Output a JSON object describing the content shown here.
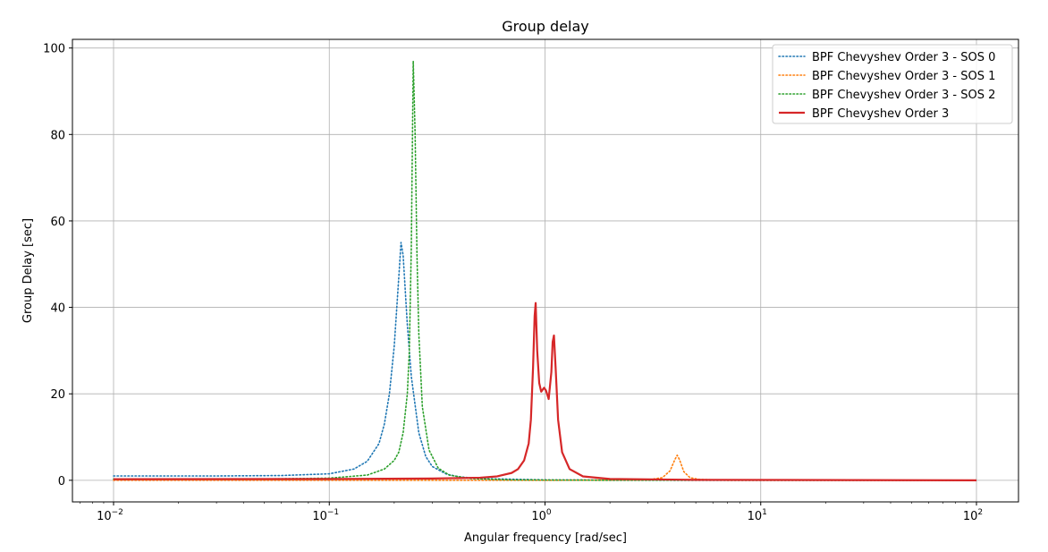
{
  "chart_data": {
    "type": "line",
    "title": "Group delay",
    "xlabel": "Angular frequency [rad/sec]",
    "ylabel": "Group Delay [sec]",
    "xscale": "log",
    "xlim": [
      0.01,
      100
    ],
    "ylim": [
      -5,
      102
    ],
    "xticks": [
      0.01,
      0.1,
      1,
      10,
      100
    ],
    "xtick_labels": [
      {
        "base": "10",
        "exp": "−2"
      },
      {
        "base": "10",
        "exp": "−1"
      },
      {
        "base": "10",
        "exp": "0"
      },
      {
        "base": "10",
        "exp": "1"
      },
      {
        "base": "10",
        "exp": "2"
      }
    ],
    "yticks": [
      0,
      20,
      40,
      60,
      80,
      100
    ],
    "ytick_labels": [
      "0",
      "20",
      "40",
      "60",
      "80",
      "100"
    ],
    "grid": true,
    "legend_position": "top-right",
    "series": [
      {
        "name": "BPF Chevyshev Order 3 - SOS 0",
        "color": "#1f77b4",
        "style": "dotted",
        "points": [
          [
            0.01,
            1.0
          ],
          [
            0.03,
            1.0
          ],
          [
            0.06,
            1.1
          ],
          [
            0.1,
            1.5
          ],
          [
            0.13,
            2.6
          ],
          [
            0.15,
            4.4
          ],
          [
            0.17,
            8.5
          ],
          [
            0.18,
            13
          ],
          [
            0.19,
            20
          ],
          [
            0.2,
            31
          ],
          [
            0.21,
            47
          ],
          [
            0.215,
            55
          ],
          [
            0.22,
            52
          ],
          [
            0.23,
            36
          ],
          [
            0.24,
            24
          ],
          [
            0.26,
            11
          ],
          [
            0.28,
            5.5
          ],
          [
            0.3,
            3.2
          ],
          [
            0.35,
            1.4
          ],
          [
            0.4,
            0.8
          ],
          [
            0.5,
            0.4
          ],
          [
            1,
            0.1
          ],
          [
            5,
            0.0
          ],
          [
            100,
            0.0
          ]
        ]
      },
      {
        "name": "BPF Chevyshev Order 3 - SOS 1",
        "color": "#ff7f0e",
        "style": "dotted",
        "points": [
          [
            0.01,
            0.0
          ],
          [
            1,
            0.0
          ],
          [
            3,
            0.1
          ],
          [
            3.5,
            0.6
          ],
          [
            3.8,
            2.2
          ],
          [
            4.0,
            4.8
          ],
          [
            4.1,
            5.8
          ],
          [
            4.2,
            4.8
          ],
          [
            4.4,
            2.0
          ],
          [
            4.7,
            0.6
          ],
          [
            5.2,
            0.2
          ],
          [
            7,
            0.0
          ],
          [
            100,
            0.0
          ]
        ]
      },
      {
        "name": "BPF Chevyshev Order 3 - SOS 2",
        "color": "#2ca02c",
        "style": "dotted",
        "points": [
          [
            0.01,
            0.3
          ],
          [
            0.05,
            0.3
          ],
          [
            0.1,
            0.5
          ],
          [
            0.15,
            1.2
          ],
          [
            0.18,
            2.6
          ],
          [
            0.2,
            4.6
          ],
          [
            0.21,
            6.5
          ],
          [
            0.22,
            11
          ],
          [
            0.23,
            20
          ],
          [
            0.235,
            30
          ],
          [
            0.24,
            54
          ],
          [
            0.245,
            97
          ],
          [
            0.25,
            80
          ],
          [
            0.255,
            52
          ],
          [
            0.26,
            34
          ],
          [
            0.27,
            17
          ],
          [
            0.29,
            7
          ],
          [
            0.32,
            2.8
          ],
          [
            0.36,
            1.2
          ],
          [
            0.45,
            0.4
          ],
          [
            0.7,
            0.1
          ],
          [
            2,
            0.0
          ],
          [
            100,
            0.0
          ]
        ]
      },
      {
        "name": "BPF Chevyshev Order 3",
        "color": "#d62728",
        "style": "solid",
        "points": [
          [
            0.01,
            0.25
          ],
          [
            0.1,
            0.3
          ],
          [
            0.3,
            0.4
          ],
          [
            0.5,
            0.6
          ],
          [
            0.6,
            0.9
          ],
          [
            0.7,
            1.7
          ],
          [
            0.75,
            2.6
          ],
          [
            0.8,
            4.6
          ],
          [
            0.84,
            8.5
          ],
          [
            0.86,
            14
          ],
          [
            0.88,
            26
          ],
          [
            0.895,
            38
          ],
          [
            0.905,
            41
          ],
          [
            0.92,
            30
          ],
          [
            0.94,
            22.5
          ],
          [
            0.96,
            20.5
          ],
          [
            0.99,
            21.4
          ],
          [
            1.01,
            20.8
          ],
          [
            1.04,
            18.8
          ],
          [
            1.07,
            25
          ],
          [
            1.085,
            32
          ],
          [
            1.1,
            33.5
          ],
          [
            1.12,
            26
          ],
          [
            1.15,
            14
          ],
          [
            1.2,
            6.5
          ],
          [
            1.3,
            2.6
          ],
          [
            1.5,
            0.9
          ],
          [
            2,
            0.3
          ],
          [
            5,
            0.1
          ],
          [
            100,
            0.0
          ]
        ]
      }
    ]
  }
}
